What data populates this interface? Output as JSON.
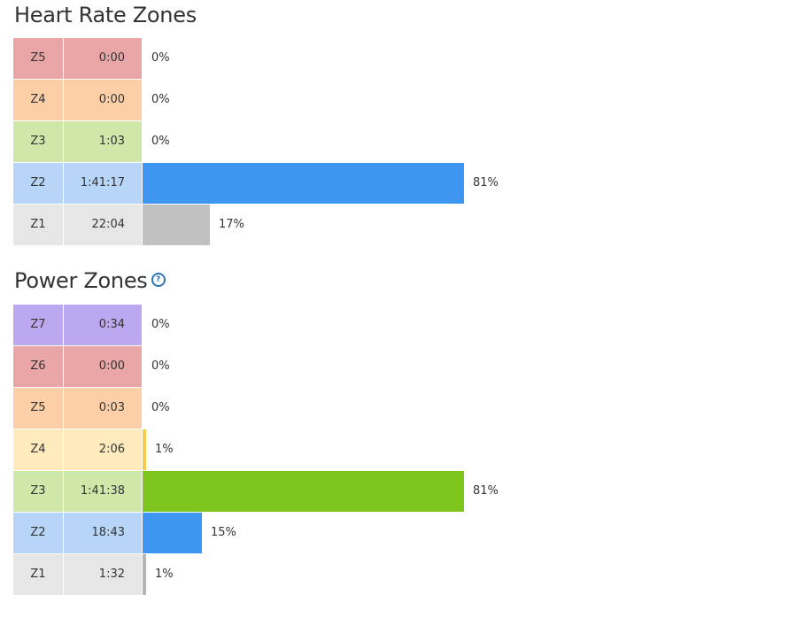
{
  "heart_rate": {
    "title": "Heart Rate Zones",
    "zones": [
      {
        "label": "Z5",
        "time": "0:00",
        "percent_text": "0%",
        "fraction": 0.0,
        "color": "#eaa6a6",
        "bar_color": "#e36a6a"
      },
      {
        "label": "Z4",
        "time": "0:00",
        "percent_text": "0%",
        "fraction": 0.0,
        "color": "#fdcfa6",
        "bar_color": "#f9a35d"
      },
      {
        "label": "Z3",
        "time": "1:03",
        "percent_text": "0%",
        "fraction": 0.0,
        "color": "#cfe8a9",
        "bar_color": "#7ec61e"
      },
      {
        "label": "Z2",
        "time": "1:41:17",
        "percent_text": "81%",
        "fraction": 0.81,
        "color": "#b7d6f7",
        "bar_color": "#3d97f0"
      },
      {
        "label": "Z1",
        "time": "22:04",
        "percent_text": "17%",
        "fraction": 0.17,
        "color": "#e6e6e6",
        "bar_color": "#c1c1c1"
      }
    ]
  },
  "power": {
    "title": "Power Zones",
    "help_icon": "help-circle-icon",
    "help_glyph": "?",
    "zones": [
      {
        "label": "Z7",
        "time": "0:34",
        "percent_text": "0%",
        "fraction": 0.0,
        "color": "#bba8ee",
        "bar_color": "#8d6de0"
      },
      {
        "label": "Z6",
        "time": "0:00",
        "percent_text": "0%",
        "fraction": 0.0,
        "color": "#eaa6a6",
        "bar_color": "#e36a6a"
      },
      {
        "label": "Z5",
        "time": "0:03",
        "percent_text": "0%",
        "fraction": 0.0,
        "color": "#fdcfa6",
        "bar_color": "#f9a35d"
      },
      {
        "label": "Z4",
        "time": "2:06",
        "percent_text": "1%",
        "fraction": 0.01,
        "color": "#feeabc",
        "bar_color": "#f7cc49"
      },
      {
        "label": "Z3",
        "time": "1:41:38",
        "percent_text": "81%",
        "fraction": 0.81,
        "color": "#cfe8a9",
        "bar_color": "#7ec61e"
      },
      {
        "label": "Z2",
        "time": "18:43",
        "percent_text": "15%",
        "fraction": 0.15,
        "color": "#b7d6f7",
        "bar_color": "#3d97f0"
      },
      {
        "label": "Z1",
        "time": "1:32",
        "percent_text": "1%",
        "fraction": 0.01,
        "color": "#e6e6e6",
        "bar_color": "#b5b5b5"
      }
    ]
  }
}
